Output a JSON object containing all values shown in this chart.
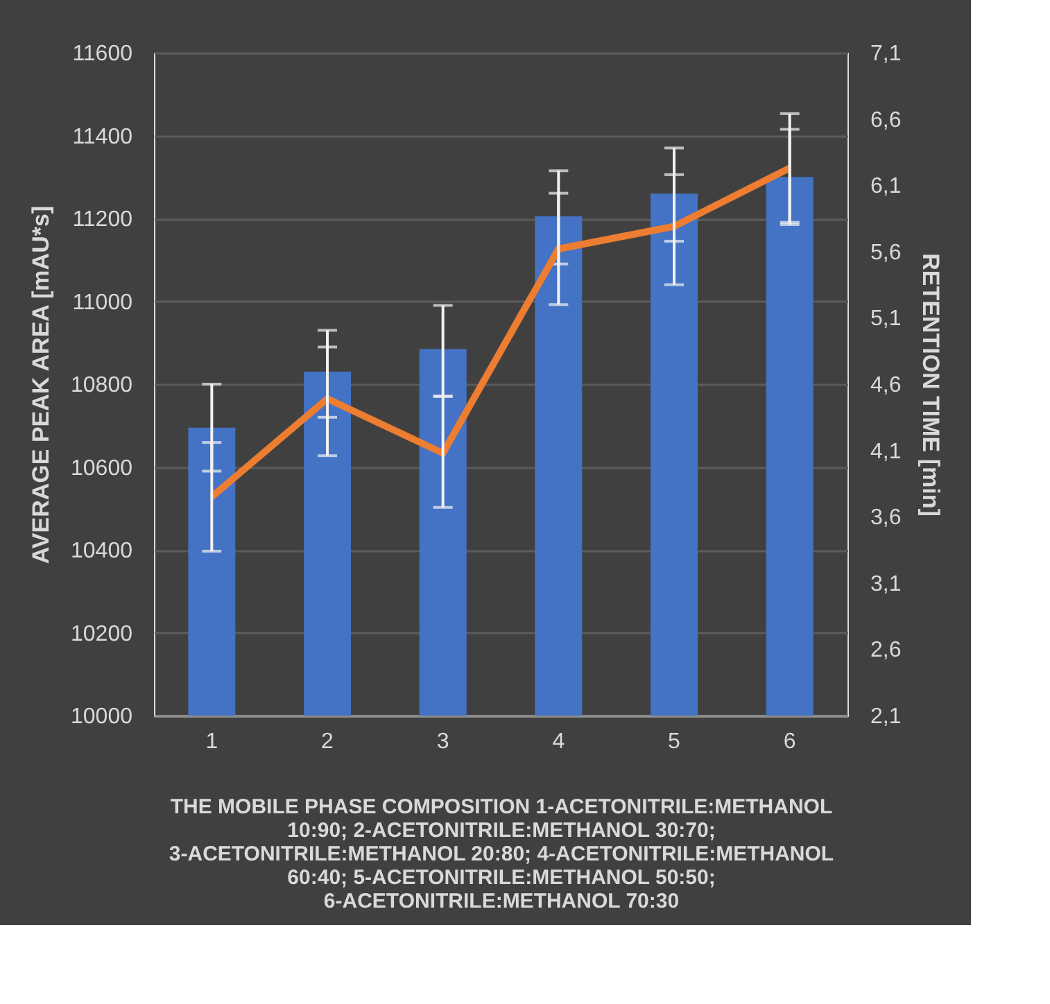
{
  "chart_data": {
    "type": "bar",
    "categories": [
      "1",
      "2",
      "3",
      "4",
      "5",
      "6"
    ],
    "xlabel": "THE MOBILE PHASE COMPOSITION 1-ACETONITRILE:METHANOL 10:90; 2-ACETONITRILE:METHANOL 30:70; 3-ACETONITRILE:METHANOL 20:80; 4-ACETONITRILE:METHANOL 60:40; 5-ACETONITRILE:METHANOL 50:50; 6-ACETONITRILE:METHANOL 70:30",
    "ylabel": "AVERAGE PEAK AREA [mAU*s]",
    "y2label": "RETENTION TIME [min]",
    "series": [
      {
        "color": "#4472c4",
        "values": [
          10695,
          10830,
          10885,
          11205,
          11260,
          11300
        ],
        "errors": [
          [
            10590,
            10800
          ],
          [
            10720,
            10930
          ],
          [
            10770,
            10990
          ],
          [
            11090,
            11315
          ],
          [
            11145,
            11370
          ],
          [
            11185,
            11415
          ]
        ]
      },
      {
        "type": "line",
        "axis": "y2",
        "color": "#ed7d31",
        "values": [
          3.75,
          4.49,
          4.08,
          5.62,
          5.79,
          6.23
        ],
        "errors": [
          [
            3.34,
            4.16
          ],
          [
            4.06,
            4.88
          ],
          [
            3.67,
            4.51
          ],
          [
            5.2,
            6.04
          ],
          [
            5.35,
            6.18
          ],
          [
            5.82,
            6.64
          ]
        ]
      }
    ],
    "ylim": [
      10000,
      11600
    ],
    "yticks": [
      10000,
      10200,
      10400,
      10600,
      10800,
      11000,
      11200,
      11400,
      11600
    ],
    "y2lim": [
      2.1,
      7.1
    ],
    "y2ticks": [
      {
        "value": 2.1,
        "label": "2,1"
      },
      {
        "value": 2.6,
        "label": "2,6"
      },
      {
        "value": 3.1,
        "label": "3,1"
      },
      {
        "value": 3.6,
        "label": "3,6"
      },
      {
        "value": 4.1,
        "label": "4,1"
      },
      {
        "value": 4.6,
        "label": "4,6"
      },
      {
        "value": 5.1,
        "label": "5,1"
      },
      {
        "value": 5.6,
        "label": "5,6"
      },
      {
        "value": 6.1,
        "label": "6,1"
      },
      {
        "value": 6.6,
        "label": "6,6"
      },
      {
        "value": 7.1,
        "label": "7,1"
      }
    ],
    "grid": "y"
  }
}
